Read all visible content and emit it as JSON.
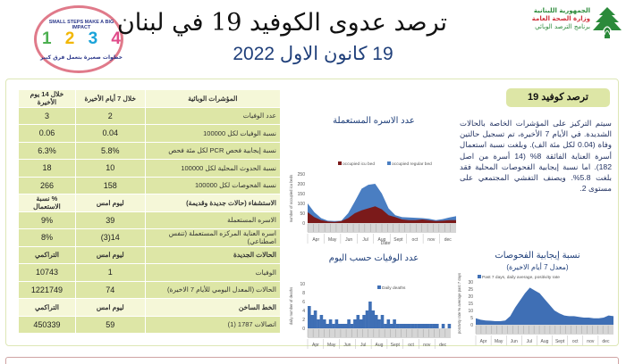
{
  "header": {
    "title": "ترصد عدوى الكوفيد 19 في لبنان",
    "date": "19 كانون الاول 2022",
    "campaign_logo": {
      "top_text": "SMALL STEPS MAKE A BIG IMPACT",
      "steps": [
        "1",
        "2",
        "3",
        "4"
      ],
      "step_colors": [
        "#4caf50",
        "#f2b705",
        "#1aa3d9",
        "#e04b8a"
      ],
      "bottom_text": "خطوات صغيرة بتعمل فرق كبير"
    },
    "ministry_logo": {
      "line1": "الجمهورية اللبنانية",
      "line2": "وزارة الصحة العامة",
      "line3": "برنامج الترصد الوبائي",
      "icon": "cedar-icon"
    }
  },
  "table": {
    "indicators_header": {
      "label": "المؤشرات الوبائية",
      "col_7d": "خلال 7 أيام الأخيرة",
      "col_14d": "خلال 14 يوم الأخيرة"
    },
    "indicators": [
      {
        "label": "عدد الوفيات",
        "v7": "2",
        "v14": "3"
      },
      {
        "label": "نسبة الوفيات لكل 100000",
        "v7": "0.04",
        "v14": "0.06"
      },
      {
        "label": "نسبة إيجابية فحص PCR لكل مئة فحص",
        "v7": "5.8%",
        "v14": "6.3%"
      },
      {
        "label": "نسبة الحدوث المحلية لكل 100000",
        "v7": "10",
        "v14": "18"
      },
      {
        "label": "نسبة الفحوصات لكل 100000",
        "v7": "158",
        "v14": "266"
      }
    ],
    "hospital_header": {
      "label": "الاستشفاء (حالات جديدة وقديمة)",
      "col_a": "ليوم امس",
      "col_b": "% نسبة الاستعمال"
    },
    "hospital": [
      {
        "label": "الاسره المستعملة",
        "a": "39",
        "b": "9%"
      },
      {
        "label": "اسره العناية المركزه المستعملة (تنفس اصطناعي)",
        "a": "14(3)",
        "b": "8%"
      }
    ],
    "cases_header": {
      "label": "الحالات الجديدة",
      "col_a": "ليوم امس",
      "col_b": "التراكمي"
    },
    "cases": [
      {
        "label": "الوفيات",
        "a": "1",
        "b": "10743"
      },
      {
        "label": "الحالات (المعدل اليومي للأيام 7 الاخيرة)",
        "a": "74",
        "b": "1221749"
      }
    ],
    "hotline_header": {
      "label": "الخط الساخن",
      "col_a": "ليوم امس",
      "col_b": "التراكمي"
    },
    "hotline": [
      {
        "label": "اتصالات 1787 (1)",
        "a": "59",
        "b": "450339"
      }
    ]
  },
  "summary": {
    "title": "ترصد كوفيد 19",
    "text": "سيتم التركيز على المؤشرات الخاصة بالحالات الشديدة. في الأيام 7 الأخيرة، تم تسجيل حالتين وفاة (0.04 لكل مئة الف). وبلغت نسبة استعمال أسرة العناية الفائقة 8% (14 أسرة من اصل 182). اما نسبة إيجابية الفحوصات المحلية فقد بلغت 5.8%. ويصنف التفشي المجتمعي على مستوى 2."
  },
  "colors": {
    "table_row": "#dde6a6",
    "table_head": "#f5f7d8",
    "icu_bed": "#7b1a1a",
    "regular_bed": "#4a7ec2",
    "deaths_bar": "#3f6fb5",
    "positivity_area": "#3f6fb5",
    "title_blue": "#1f3f7a"
  },
  "chart_data": [
    {
      "type": "area",
      "title": "عدد الاسره المستعملة",
      "xlabel": "Date",
      "ylabel": "number of occupied icu beds",
      "ylim": [
        0,
        250
      ],
      "yticks": [
        0,
        50,
        100,
        150,
        200,
        250
      ],
      "categories": [
        "Apr",
        "May",
        "Jun",
        "Jul",
        "Aug",
        "Sept",
        "oct",
        "nov",
        "dec"
      ],
      "legend": [
        "occupied icu bed",
        "occupied regular bed"
      ],
      "legend_position": "top",
      "series": [
        {
          "name": "occupied icu bed",
          "values": [
            55,
            30,
            15,
            8,
            6,
            10,
            25,
            50,
            65,
            75,
            85,
            70,
            40,
            30,
            18,
            15,
            15,
            18,
            14,
            10,
            12,
            15,
            15
          ]
        },
        {
          "name": "occupied regular bed",
          "values": [
            100,
            55,
            25,
            12,
            10,
            12,
            50,
            110,
            175,
            195,
            200,
            150,
            75,
            40,
            30,
            28,
            27,
            25,
            22,
            15,
            20,
            28,
            35
          ]
        }
      ]
    },
    {
      "type": "bar",
      "title": "عدد الوفيات حسب اليوم",
      "ylabel": "daily number of deaths",
      "ylim": [
        0,
        10
      ],
      "yticks": [
        0,
        2,
        4,
        6,
        8,
        10
      ],
      "categories": [
        "Apr",
        "May",
        "Jun",
        "Jul",
        "Aug",
        "Sept",
        "oct",
        "nov",
        "dec"
      ],
      "legend": [
        "Daily deaths"
      ],
      "legend_position": "top",
      "series": [
        {
          "name": "Daily deaths",
          "values": [
            5,
            3,
            4,
            2,
            3,
            2,
            1,
            2,
            1,
            2,
            1,
            1,
            1,
            2,
            1,
            2,
            3,
            2,
            3,
            4,
            6,
            4,
            3,
            2,
            3,
            1,
            2,
            1,
            2,
            1,
            1,
            1,
            1,
            1,
            1,
            1,
            1,
            1,
            1,
            1,
            1,
            1,
            1,
            0,
            1,
            0,
            1
          ]
        }
      ]
    },
    {
      "type": "area",
      "title": "نسبة إيجابية الفحوصات",
      "subtitle": "(معدل 7 أيام الاخيرة)",
      "ylabel": "positivity rate % average past 7 days",
      "ylim": [
        0,
        30
      ],
      "yticks": [
        0,
        5,
        10,
        15,
        20,
        25,
        30
      ],
      "categories": [
        "Apr",
        "May",
        "Jun",
        "Jul",
        "Aug",
        "Sept",
        "oct",
        "nov",
        "dec"
      ],
      "legend": [
        "Past 7 days, daily average, positivity rate"
      ],
      "legend_position": "top",
      "series": [
        {
          "name": "Past 7 days, daily average, positivity rate",
          "values": [
            4.5,
            3.5,
            3,
            2.8,
            2.5,
            2.5,
            3,
            6,
            12,
            17,
            22,
            26,
            24,
            22,
            18,
            14,
            10,
            8,
            6.5,
            6,
            6,
            5.5,
            5,
            5,
            4.5,
            4.5,
            5,
            6.5,
            6
          ]
        }
      ]
    }
  ]
}
